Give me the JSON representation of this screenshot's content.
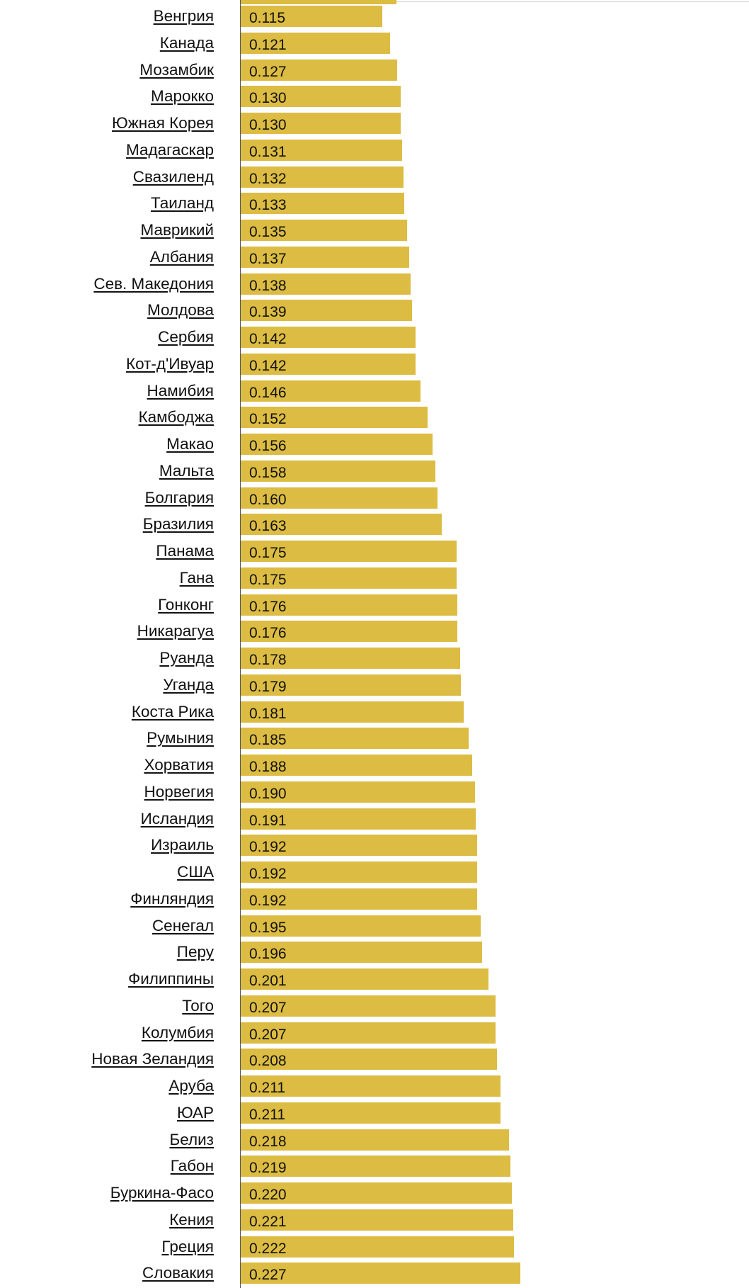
{
  "chart_data": {
    "type": "bar",
    "orientation": "horizontal",
    "colors": {
      "bar": "#dcbc42",
      "axis": "#555555",
      "text": "#111111"
    },
    "categories": [
      "Венгрия",
      "Канада",
      "Мозамбик",
      "Марокко",
      "Южная Корея",
      "Мадагаскар",
      "Свазиленд",
      "Таиланд",
      "Маврикий",
      "Албания",
      "Сев. Македония",
      "Молдова",
      "Сербия",
      "Кот-д'Ивуар",
      "Намибия",
      "Камбоджа",
      "Макао",
      "Мальта",
      "Болгария",
      "Бразилия",
      "Панама",
      "Гана",
      "Гонконг",
      "Никарагуа",
      "Руанда",
      "Уганда",
      "Коста Рика",
      "Румыния",
      "Хорватия",
      "Норвегия",
      "Исландия",
      "Израиль",
      "США",
      "Финляндия",
      "Сенегал",
      "Перу",
      "Филиппины",
      "Того",
      "Колумбия",
      "Новая Зеландия",
      "Аруба",
      "ЮАР",
      "Белиз",
      "Габон",
      "Буркина-Фасо",
      "Кения",
      "Греция",
      "Словакия"
    ],
    "values": [
      0.115,
      0.121,
      0.127,
      0.13,
      0.13,
      0.131,
      0.132,
      0.133,
      0.135,
      0.137,
      0.138,
      0.139,
      0.142,
      0.142,
      0.146,
      0.152,
      0.156,
      0.158,
      0.16,
      0.163,
      0.175,
      0.175,
      0.176,
      0.176,
      0.178,
      0.179,
      0.181,
      0.185,
      0.188,
      0.19,
      0.191,
      0.192,
      0.192,
      0.192,
      0.195,
      0.196,
      0.201,
      0.207,
      0.207,
      0.208,
      0.211,
      0.211,
      0.218,
      0.219,
      0.22,
      0.221,
      0.222,
      0.227
    ],
    "value_labels": [
      "0.115",
      "0.121",
      "0.127",
      "0.130",
      "0.130",
      "0.131",
      "0.132",
      "0.133",
      "0.135",
      "0.137",
      "0.138",
      "0.139",
      "0.142",
      "0.142",
      "0.146",
      "0.152",
      "0.156",
      "0.158",
      "0.160",
      "0.163",
      "0.175",
      "0.175",
      "0.176",
      "0.176",
      "0.178",
      "0.179",
      "0.181",
      "0.185",
      "0.188",
      "0.190",
      "0.191",
      "0.192",
      "0.192",
      "0.192",
      "0.195",
      "0.196",
      "0.201",
      "0.207",
      "0.207",
      "0.208",
      "0.211",
      "0.211",
      "0.218",
      "0.219",
      "0.220",
      "0.221",
      "0.222",
      "0.227"
    ],
    "title": "",
    "xlabel": "",
    "ylabel": "",
    "xlim": [
      0,
      0.227
    ]
  }
}
